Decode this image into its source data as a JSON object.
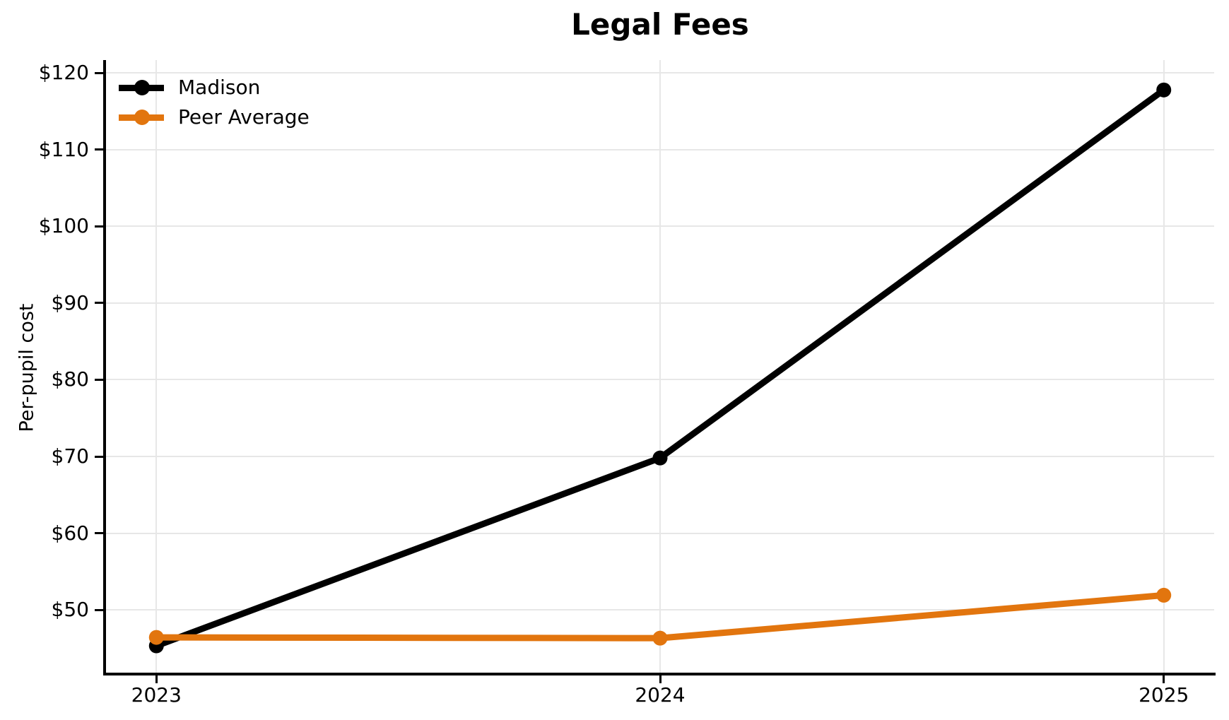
{
  "chart_data": {
    "type": "line",
    "title": "Legal Fees",
    "xlabel": "",
    "ylabel": "Per-pupil cost",
    "x": [
      2023,
      2024,
      2025
    ],
    "x_tick_labels": [
      "2023",
      "2024",
      "2025"
    ],
    "y_ticks": [
      50,
      60,
      70,
      80,
      90,
      100,
      110,
      120
    ],
    "y_tick_labels": [
      "$50",
      "$60",
      "$70",
      "$80",
      "$90",
      "$100",
      "$110",
      "$120"
    ],
    "xlim": [
      2022.9,
      2025.1
    ],
    "ylim": [
      41.8,
      121.7
    ],
    "grid": true,
    "legend_position": "upper left",
    "series": [
      {
        "name": "Madison",
        "color": "#000000",
        "values": [
          45.3,
          69.8,
          117.8
        ]
      },
      {
        "name": "Peer Average",
        "color": "#E2750E",
        "values": [
          46.4,
          46.3,
          51.9
        ]
      }
    ]
  },
  "colors": {
    "background": "#FFFFFF",
    "gridline": "#E7E7E7",
    "axis": "#000000",
    "text": "#000000"
  }
}
